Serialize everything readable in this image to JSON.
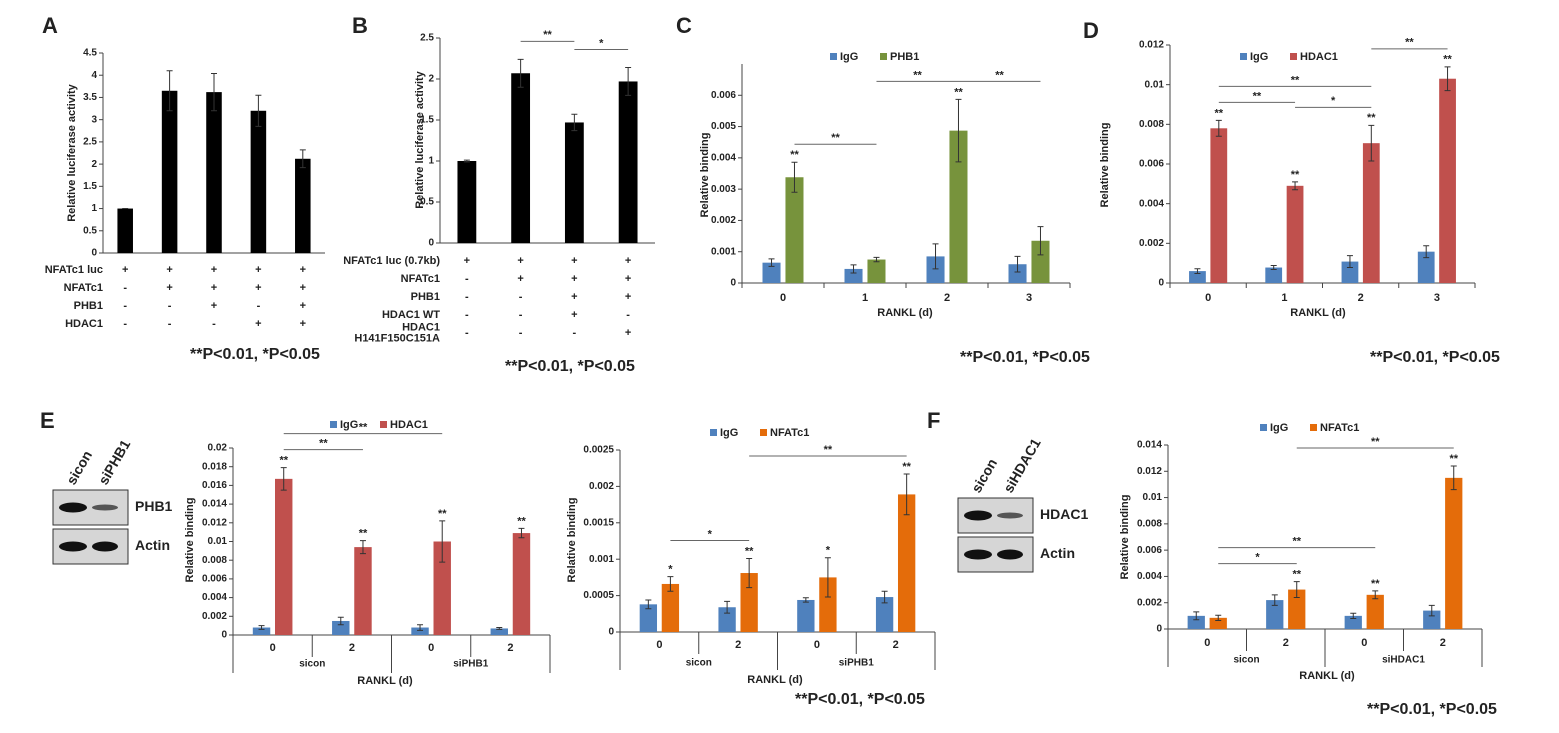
{
  "chart_data": [
    {
      "type": "bar",
      "panel": "A",
      "ylabel": "Relative luciferase activity",
      "values": [
        1,
        3.65,
        3.62,
        3.2,
        2.12
      ],
      "errors": [
        0,
        0.45,
        0.42,
        0.35,
        0.2
      ],
      "color": "#000000",
      "ylim": [
        0,
        4.5
      ],
      "yticks": [
        0,
        0.5,
        1,
        1.5,
        2,
        2.5,
        3,
        3.5,
        4,
        4.5
      ],
      "conditions": [
        {
          "name": "NFATc1 luc",
          "values": [
            "+",
            "+",
            "+",
            "+",
            "+"
          ]
        },
        {
          "name": "NFATc1",
          "values": [
            "-",
            "+",
            "+",
            "+",
            "+"
          ]
        },
        {
          "name": "PHB1",
          "values": [
            "-",
            "-",
            "+",
            "-",
            "+"
          ]
        },
        {
          "name": "HDAC1",
          "values": [
            "-",
            "-",
            "-",
            "+",
            "+"
          ]
        }
      ],
      "note": "**P<0.01, *P<0.05"
    },
    {
      "type": "bar",
      "panel": "B",
      "ylabel": "Relative luciferase activity",
      "values": [
        1,
        2.07,
        1.47,
        1.97
      ],
      "errors": [
        0.01,
        0.17,
        0.1,
        0.17
      ],
      "color": "#000000",
      "ylim": [
        0,
        2.5
      ],
      "yticks": [
        0,
        0.5,
        1,
        1.5,
        2,
        2.5
      ],
      "conditions": [
        {
          "name": "NFATc1 luc (0.7kb)",
          "values": [
            "+",
            "+",
            "+",
            "+"
          ]
        },
        {
          "name": "NFATc1",
          "values": [
            "-",
            "+",
            "+",
            "+"
          ]
        },
        {
          "name": "PHB1",
          "values": [
            "-",
            "-",
            "+",
            "+"
          ]
        },
        {
          "name": "HDAC1 WT",
          "values": [
            "-",
            "-",
            "+",
            "-"
          ]
        },
        {
          "name": [
            "HDAC1",
            "H141F150C151A"
          ],
          "values": [
            "-",
            "-",
            "-",
            "+"
          ]
        }
      ],
      "brackets": [
        {
          "from": 1,
          "to": 2,
          "label": "**"
        },
        {
          "from": 2,
          "to": 3,
          "label": "*"
        }
      ],
      "note": "**P<0.01, *P<0.05"
    },
    {
      "type": "grouped_bar",
      "panel": "C",
      "ylabel": "Relative binding",
      "xlabel": "RANKL (d)",
      "categories": [
        "0",
        "1",
        "2",
        "3"
      ],
      "series": [
        {
          "name": "IgG",
          "color": "#4f81bd",
          "values": [
            0.00065,
            0.00045,
            0.00085,
            0.0006
          ],
          "errors": [
            0.00012,
            0.00013,
            0.0004,
            0.00025
          ],
          "stars": [
            null,
            null,
            null,
            null
          ]
        },
        {
          "name": "PHB1",
          "color": "#77933c",
          "values": [
            0.00338,
            0.00075,
            0.00487,
            0.00135
          ],
          "errors": [
            0.00048,
            7e-05,
            0.001,
            0.00045
          ],
          "stars": [
            "**",
            null,
            "**",
            null
          ]
        }
      ],
      "ylim": [
        0,
        0.007
      ],
      "yticks": [
        0,
        0.001,
        0.002,
        0.003,
        0.004,
        0.005,
        0.006
      ],
      "brackets": [
        {
          "from": 0,
          "to": 1,
          "label": "**"
        },
        {
          "from": 1,
          "to": 2,
          "label": "**"
        },
        {
          "from": 2,
          "to": 3,
          "label": "**"
        }
      ],
      "note": "**P<0.01, *P<0.05"
    },
    {
      "type": "grouped_bar",
      "panel": "D",
      "ylabel": "Relative binding",
      "xlabel": "RANKL (d)",
      "categories": [
        "0",
        "1",
        "2",
        "3"
      ],
      "series": [
        {
          "name": "IgG",
          "color": "#4f81bd",
          "values": [
            0.0006,
            0.00078,
            0.00108,
            0.00158
          ],
          "errors": [
            0.00012,
            0.0001,
            0.0003,
            0.0003
          ],
          "stars": [
            null,
            null,
            null,
            null
          ]
        },
        {
          "name": "HDAC1",
          "color": "#c0504d",
          "values": [
            0.0078,
            0.0049,
            0.00705,
            0.0103
          ],
          "errors": [
            0.0004,
            0.0002,
            0.0009,
            0.0006
          ],
          "stars": [
            "**",
            "**",
            "**",
            "**"
          ]
        }
      ],
      "ylim": [
        0,
        0.012
      ],
      "yticks": [
        0,
        0.002,
        0.004,
        0.006,
        0.008,
        0.01,
        0.012
      ],
      "brackets": [
        {
          "from": 0,
          "to": 1,
          "label": "**"
        },
        {
          "from": 1,
          "to": 2,
          "label": "*"
        },
        {
          "from": 0,
          "to": 2,
          "label": "**"
        },
        {
          "from": 2,
          "to": 3,
          "label": "**"
        }
      ],
      "note": "**P<0.01, *P<0.05"
    },
    {
      "type": "grouped_bar",
      "panel": "E",
      "ylabel": "Relative binding",
      "xlabel": "RANKL (d)",
      "categories": [
        "0",
        "2",
        "0",
        "2"
      ],
      "groups": [
        "sicon",
        "siPHB1"
      ],
      "series": [
        {
          "name": "IgG",
          "color": "#4f81bd",
          "values": [
            0.0008,
            0.0015,
            0.0008,
            0.0007
          ],
          "errors": [
            0.0002,
            0.0004,
            0.0003,
            0.0001
          ],
          "stars": [
            null,
            null,
            null,
            null
          ]
        },
        {
          "name": "HDAC1",
          "color": "#c0504d",
          "values": [
            0.0167,
            0.0094,
            0.01,
            0.0109
          ],
          "errors": [
            0.0012,
            0.0007,
            0.0022,
            0.0005
          ],
          "stars": [
            "**",
            "**",
            "**",
            "**"
          ]
        }
      ],
      "ylim": [
        0,
        0.02
      ],
      "yticks": [
        0,
        0.002,
        0.004,
        0.006,
        0.008,
        0.01,
        0.012,
        0.014,
        0.016,
        0.018,
        0.02
      ],
      "brackets": [
        {
          "from": 0,
          "to": 1,
          "label": "**"
        },
        {
          "from": 0,
          "to": 2,
          "label": "**"
        }
      ],
      "blot": {
        "lanes": [
          "sicon",
          "siPHB1"
        ],
        "bands": [
          "PHB1",
          "Actin"
        ]
      }
    },
    {
      "type": "grouped_bar",
      "ylabel": "Relative binding",
      "xlabel": "RANKL (d)",
      "categories": [
        "0",
        "2",
        "0",
        "2"
      ],
      "groups": [
        "sicon",
        "siPHB1"
      ],
      "series": [
        {
          "name": "IgG",
          "color": "#4f81bd",
          "values": [
            0.00038,
            0.00034,
            0.00044,
            0.00048
          ],
          "errors": [
            6e-05,
            8e-05,
            3e-05,
            8e-05
          ],
          "stars": [
            null,
            null,
            null,
            null
          ]
        },
        {
          "name": "NFATc1",
          "color": "#e46c0a",
          "values": [
            0.00066,
            0.00081,
            0.00075,
            0.00189
          ],
          "errors": [
            0.0001,
            0.0002,
            0.00027,
            0.00028
          ],
          "stars": [
            "*",
            "**",
            "*",
            "**"
          ]
        }
      ],
      "ylim": [
        0,
        0.0025
      ],
      "yticks": [
        0,
        0.0005,
        0.001,
        0.0015,
        0.002,
        0.0025
      ],
      "brackets": [
        {
          "from": 0,
          "to": 1,
          "label": "*"
        },
        {
          "from": 1,
          "to": 3,
          "label": "**"
        }
      ],
      "note": "**P<0.01, *P<0.05"
    },
    {
      "type": "grouped_bar",
      "panel": "F",
      "ylabel": "Relative binding",
      "xlabel": "RANKL (d)",
      "categories": [
        "0",
        "2",
        "0",
        "2"
      ],
      "groups": [
        "sicon",
        "siHDAC1"
      ],
      "series": [
        {
          "name": "IgG",
          "color": "#4f81bd",
          "values": [
            0.001,
            0.0022,
            0.001,
            0.0014
          ],
          "errors": [
            0.0003,
            0.0004,
            0.0002,
            0.0004
          ],
          "stars": [
            null,
            null,
            null,
            null
          ]
        },
        {
          "name": "NFATc1",
          "color": "#e46c0a",
          "values": [
            0.00085,
            0.003,
            0.0026,
            0.0115
          ],
          "errors": [
            0.0002,
            0.0006,
            0.0003,
            0.0009
          ],
          "stars": [
            null,
            "**",
            "**",
            "**"
          ]
        }
      ],
      "ylim": [
        0,
        0.014
      ],
      "yticks": [
        0,
        0.002,
        0.004,
        0.006,
        0.008,
        0.01,
        0.012,
        0.014
      ],
      "brackets": [
        {
          "from": 0,
          "to": 1,
          "label": "*"
        },
        {
          "from": 0,
          "to": 2,
          "label": "**"
        },
        {
          "from": 1,
          "to": 3,
          "label": "**"
        }
      ],
      "blot": {
        "lanes": [
          "sicon",
          "siHDAC1"
        ],
        "bands": [
          "HDAC1",
          "Actin"
        ]
      },
      "note": "**P<0.01, *P<0.05"
    }
  ]
}
